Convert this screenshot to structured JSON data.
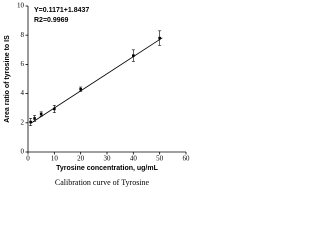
{
  "chart_data": {
    "type": "scatter",
    "equation": "Y=0.1171+1.8437",
    "r2": "R2=0.9969",
    "xlabel": "Tyrosine concentration, ug/mL",
    "ylabel": "Area ratio of tyrosine to IS",
    "caption": "Calibration curve of Tyrosine",
    "x": [
      1,
      2.5,
      5,
      10,
      20,
      40,
      50
    ],
    "series": [
      {
        "color": "#000000",
        "values": [
          2.05,
          2.3,
          2.6,
          2.95,
          4.3,
          6.6,
          7.8
        ],
        "errors": [
          0.25,
          0.2,
          0.15,
          0.25,
          0.15,
          0.4,
          0.5
        ]
      }
    ],
    "fit": {
      "color": "#000000",
      "x": [
        1,
        51
      ],
      "values": [
        1.96,
        7.82
      ]
    },
    "xlim": [
      0,
      60
    ],
    "ylim": [
      0,
      10
    ],
    "xticks": [
      0,
      10,
      20,
      30,
      40,
      50,
      60
    ],
    "yticks": [
      0,
      2,
      4,
      6,
      8,
      10
    ]
  }
}
